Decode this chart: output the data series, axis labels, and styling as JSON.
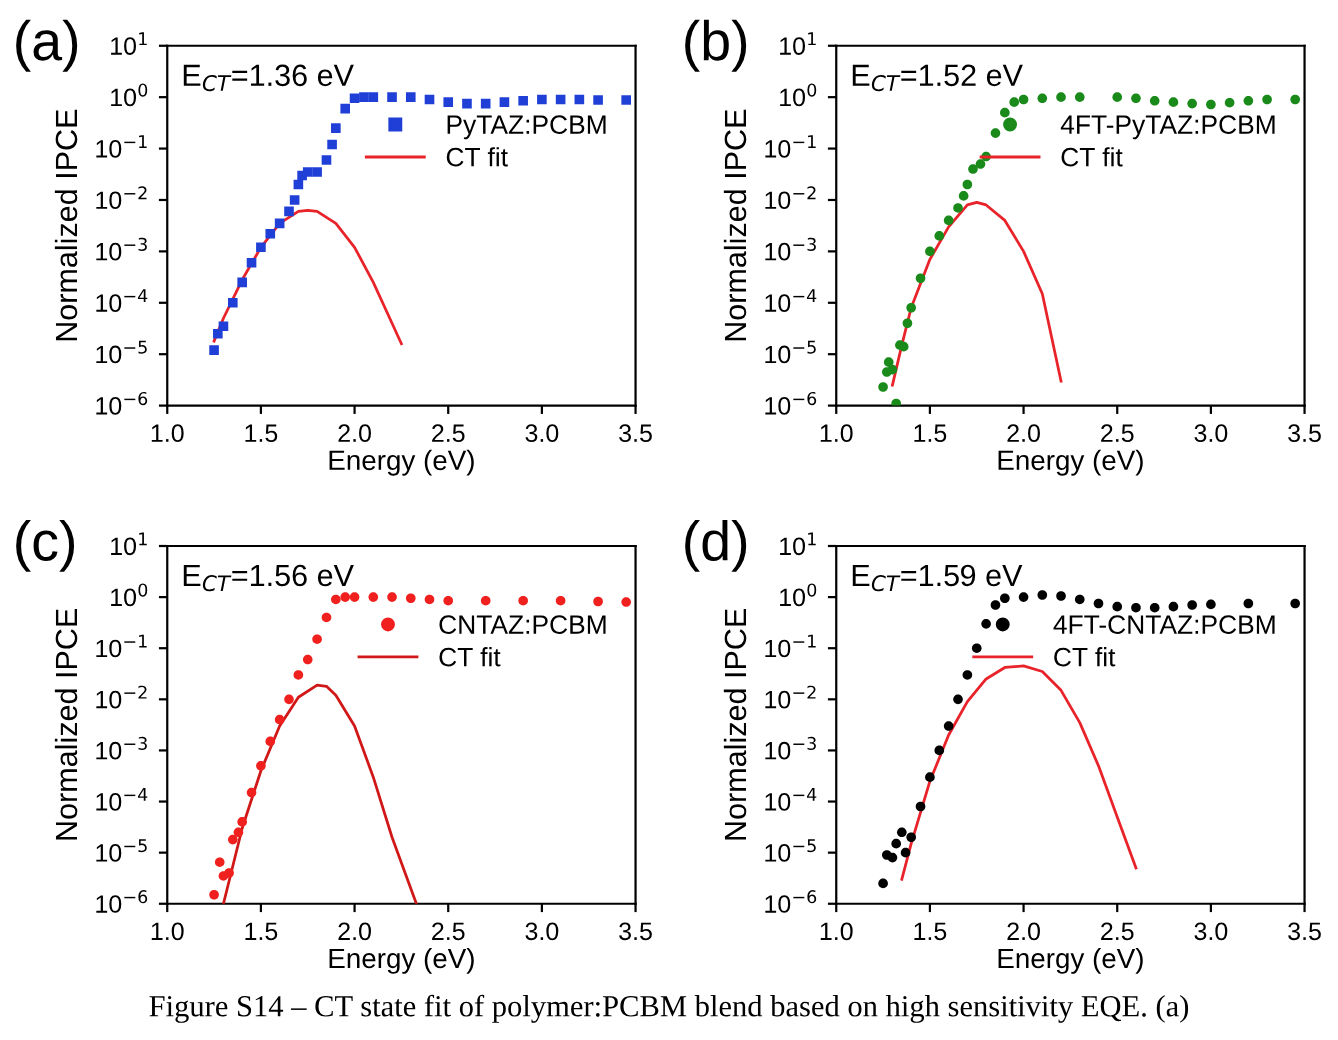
{
  "chart_data": [
    {
      "type": "scatter",
      "title": "(a)",
      "xlabel": "Energy (eV)",
      "ylabel": "Normalized IPCE",
      "log": "y",
      "xlim": [
        1.0,
        3.5
      ],
      "ylim": [
        1e-06,
        10
      ],
      "grid": false,
      "legend": "top right",
      "xticks": [
        {
          "value": 1.0,
          "label": "1.0"
        },
        {
          "value": 1.5,
          "label": "1.5"
        },
        {
          "value": 2.0,
          "label": "2.0"
        },
        {
          "value": 2.5,
          "label": "2.5"
        },
        {
          "value": 3.0,
          "label": "3.0"
        },
        {
          "value": 3.5,
          "label": "3.5"
        }
      ],
      "yticks": [
        {
          "value": 1e-06,
          "label": "10$^{−6}$"
        },
        {
          "value": 1e-05,
          "label": "10$^{−5}$"
        },
        {
          "value": 0.0001,
          "label": "10$^{−4}$"
        },
        {
          "value": 0.001,
          "label": "10$^{−3}$"
        },
        {
          "value": 0.01,
          "label": "10$^{−2}$"
        },
        {
          "value": 0.1,
          "label": "10$^{−1}$"
        },
        {
          "value": 1,
          "label": "10$^{0}$"
        },
        {
          "value": 10,
          "label": "10$^{1}$"
        }
      ],
      "annotations": [
        "E$_{CT}$=1.36 eV"
      ],
      "series": [
        {
          "name": "PyTAZ:PCBM",
          "marker": "square",
          "color": "#1f3fd6",
          "x": [
            1.25,
            1.27,
            1.3,
            1.35,
            1.4,
            1.45,
            1.5,
            1.55,
            1.6,
            1.65,
            1.68,
            1.7,
            1.72,
            1.75,
            1.8,
            1.85,
            1.88,
            1.9,
            1.95,
            2.0,
            2.05,
            2.1,
            2.2,
            2.3,
            2.4,
            2.5,
            2.6,
            2.7,
            2.8,
            2.9,
            3.0,
            3.1,
            3.2,
            3.3,
            3.45
          ],
          "values": [
            1.2e-05,
            2.5e-05,
            3.5e-05,
            0.0001,
            0.00025,
            0.0006,
            0.0012,
            0.0022,
            0.0035,
            0.006,
            0.01,
            0.02,
            0.03,
            0.035,
            0.035,
            0.06,
            0.12,
            0.25,
            0.6,
            0.95,
            1.0,
            1.0,
            1.0,
            1.0,
            0.9,
            0.8,
            0.75,
            0.75,
            0.8,
            0.85,
            0.9,
            0.9,
            0.9,
            0.88,
            0.88
          ]
        },
        {
          "name": "CT fit",
          "type": "line",
          "color": "#e8232a",
          "x": [
            1.25,
            1.3,
            1.4,
            1.5,
            1.6,
            1.7,
            1.75,
            1.8,
            1.9,
            2.0,
            2.1,
            2.2,
            2.25
          ],
          "values": [
            1.8e-05,
            5e-05,
            0.00028,
            0.0012,
            0.0035,
            0.006,
            0.0063,
            0.006,
            0.0035,
            0.0012,
            0.00025,
            4e-05,
            1.6e-05
          ]
        }
      ]
    },
    {
      "type": "scatter",
      "title": "(b)",
      "xlabel": "Energy (eV)",
      "ylabel": "Normalized IPCE",
      "log": "y",
      "xlim": [
        1.0,
        3.5
      ],
      "ylim": [
        1e-06,
        10
      ],
      "grid": false,
      "legend": "top right",
      "xticks": [
        {
          "value": 1.0,
          "label": "1.0"
        },
        {
          "value": 1.5,
          "label": "1.5"
        },
        {
          "value": 2.0,
          "label": "2.0"
        },
        {
          "value": 2.5,
          "label": "2.5"
        },
        {
          "value": 3.0,
          "label": "3.0"
        },
        {
          "value": 3.5,
          "label": "3.5"
        }
      ],
      "yticks": [
        {
          "value": 1e-06,
          "label": "10$^{−6}$"
        },
        {
          "value": 1e-05,
          "label": "10$^{−5}$"
        },
        {
          "value": 0.0001,
          "label": "10$^{−4}$"
        },
        {
          "value": 0.001,
          "label": "10$^{−3}$"
        },
        {
          "value": 0.01,
          "label": "10$^{−2}$"
        },
        {
          "value": 0.1,
          "label": "10$^{−1}$"
        },
        {
          "value": 1,
          "label": "10$^{0}$"
        },
        {
          "value": 10,
          "label": "10$^{1}$"
        }
      ],
      "annotations": [
        "E$_{CT}$=1.52 eV"
      ],
      "series": [
        {
          "name": "4FT-PyTAZ:PCBM",
          "marker": "circle",
          "color": "#1a8a1a",
          "x": [
            1.25,
            1.27,
            1.28,
            1.3,
            1.32,
            1.34,
            1.36,
            1.38,
            1.4,
            1.45,
            1.5,
            1.55,
            1.6,
            1.65,
            1.68,
            1.7,
            1.73,
            1.77,
            1.8,
            1.85,
            1.9,
            1.95,
            2.0,
            2.1,
            2.2,
            2.3,
            2.5,
            2.6,
            2.7,
            2.8,
            2.9,
            3.0,
            3.1,
            3.2,
            3.3,
            3.45
          ],
          "values": [
            2.3e-06,
            4.5e-06,
            7e-06,
            5e-06,
            1.1e-06,
            1.5e-05,
            1.4e-05,
            4e-05,
            8e-05,
            0.0003,
            0.001,
            0.002,
            0.004,
            0.007,
            0.012,
            0.02,
            0.04,
            0.05,
            0.07,
            0.2,
            0.5,
            0.8,
            0.9,
            0.95,
            1.0,
            1.0,
            1.0,
            0.95,
            0.85,
            0.8,
            0.75,
            0.72,
            0.78,
            0.85,
            0.9,
            0.9
          ]
        },
        {
          "name": "CT fit",
          "type": "line",
          "color": "#e8232a",
          "x": [
            1.3,
            1.35,
            1.4,
            1.5,
            1.6,
            1.7,
            1.75,
            1.8,
            1.9,
            2.0,
            2.1,
            2.2
          ],
          "values": [
            2.5e-06,
            1.5e-05,
            8e-05,
            0.0007,
            0.003,
            0.008,
            0.009,
            0.008,
            0.004,
            0.001,
            0.00015,
            3e-06
          ]
        }
      ]
    },
    {
      "type": "scatter",
      "title": "(c)",
      "xlabel": "Energy (eV)",
      "ylabel": "Normalized IPCE",
      "log": "y",
      "xlim": [
        1.0,
        3.5
      ],
      "ylim": [
        1e-06,
        10
      ],
      "grid": false,
      "legend": "top right",
      "xticks": [
        {
          "value": 1.0,
          "label": "1.0"
        },
        {
          "value": 1.5,
          "label": "1.5"
        },
        {
          "value": 2.0,
          "label": "2.0"
        },
        {
          "value": 2.5,
          "label": "2.5"
        },
        {
          "value": 3.0,
          "label": "3.0"
        },
        {
          "value": 3.5,
          "label": "3.5"
        }
      ],
      "yticks": [
        {
          "value": 1e-06,
          "label": "10$^{−6}$"
        },
        {
          "value": 1e-05,
          "label": "10$^{−5}$"
        },
        {
          "value": 0.0001,
          "label": "10$^{−4}$"
        },
        {
          "value": 0.001,
          "label": "10$^{−3}$"
        },
        {
          "value": 0.01,
          "label": "10$^{−2}$"
        },
        {
          "value": 0.1,
          "label": "10$^{−1}$"
        },
        {
          "value": 1,
          "label": "10$^{0}$"
        },
        {
          "value": 10,
          "label": "10$^{1}$"
        }
      ],
      "annotations": [
        "E$_{CT}$=1.56 eV"
      ],
      "series": [
        {
          "name": "CNTAZ:PCBM",
          "marker": "circle",
          "color": "#f0201e",
          "x": [
            1.25,
            1.28,
            1.3,
            1.33,
            1.35,
            1.38,
            1.4,
            1.45,
            1.5,
            1.55,
            1.6,
            1.65,
            1.7,
            1.75,
            1.8,
            1.85,
            1.9,
            1.95,
            2.0,
            2.1,
            2.2,
            2.3,
            2.4,
            2.5,
            2.7,
            2.9,
            3.1,
            3.3,
            3.45
          ],
          "values": [
            1.5e-06,
            6.5e-06,
            3.5e-06,
            4e-06,
            1.8e-05,
            2.5e-05,
            4e-05,
            0.00015,
            0.0005,
            0.0015,
            0.004,
            0.01,
            0.03,
            0.06,
            0.15,
            0.4,
            0.9,
            1.0,
            1.0,
            1.0,
            1.0,
            0.95,
            0.9,
            0.85,
            0.85,
            0.85,
            0.85,
            0.82,
            0.8
          ]
        },
        {
          "name": "CT fit",
          "type": "line",
          "color": "#d01818",
          "x": [
            1.3,
            1.4,
            1.5,
            1.6,
            1.7,
            1.8,
            1.85,
            1.9,
            2.0,
            2.1,
            2.2,
            2.33
          ],
          "values": [
            1e-06,
            3e-05,
            0.0004,
            0.003,
            0.011,
            0.019,
            0.018,
            0.012,
            0.003,
            0.0003,
            2e-05,
            1e-06
          ]
        }
      ]
    },
    {
      "type": "scatter",
      "title": "(d)",
      "xlabel": "Energy (eV)",
      "ylabel": "Normalized IPCE",
      "log": "y",
      "xlim": [
        1.0,
        3.5
      ],
      "ylim": [
        1e-06,
        10
      ],
      "grid": false,
      "legend": "top right",
      "xticks": [
        {
          "value": 1.0,
          "label": "1.0"
        },
        {
          "value": 1.5,
          "label": "1.5"
        },
        {
          "value": 2.0,
          "label": "2.0"
        },
        {
          "value": 2.5,
          "label": "2.5"
        },
        {
          "value": 3.0,
          "label": "3.0"
        },
        {
          "value": 3.5,
          "label": "3.5"
        }
      ],
      "yticks": [
        {
          "value": 1e-06,
          "label": "10$^{−6}$"
        },
        {
          "value": 1e-05,
          "label": "10$^{−5}$"
        },
        {
          "value": 0.0001,
          "label": "10$^{−4}$"
        },
        {
          "value": 0.001,
          "label": "10$^{−3}$"
        },
        {
          "value": 0.01,
          "label": "10$^{−2}$"
        },
        {
          "value": 0.1,
          "label": "10$^{−1}$"
        },
        {
          "value": 1,
          "label": "10$^{0}$"
        },
        {
          "value": 10,
          "label": "10$^{1}$"
        }
      ],
      "annotations": [
        "E$_{CT}$=1.59 eV",
        "Figure S14 – CT state fit of polymer:PCBM blend based on high sensitivity EQE. (a)"
      ],
      "series": [
        {
          "name": "4FT-CNTAZ:PCBM",
          "marker": "circle",
          "color": "#000000",
          "x": [
            1.25,
            1.27,
            1.3,
            1.32,
            1.35,
            1.37,
            1.4,
            1.45,
            1.5,
            1.55,
            1.6,
            1.65,
            1.7,
            1.75,
            1.8,
            1.85,
            1.9,
            2.0,
            2.1,
            2.2,
            2.3,
            2.4,
            2.5,
            2.6,
            2.7,
            2.8,
            2.9,
            3.0,
            3.2,
            3.45
          ],
          "values": [
            2.5e-06,
            9e-06,
            8e-06,
            1.5e-05,
            2.5e-05,
            1e-05,
            2e-05,
            8e-05,
            0.0003,
            0.001,
            0.003,
            0.01,
            0.03,
            0.1,
            0.3,
            0.7,
            0.95,
            1.0,
            1.1,
            1.05,
            0.9,
            0.75,
            0.65,
            0.62,
            0.62,
            0.65,
            0.7,
            0.72,
            0.75,
            0.75
          ]
        },
        {
          "name": "CT fit",
          "type": "line",
          "color": "#e8232a",
          "x": [
            1.35,
            1.4,
            1.5,
            1.6,
            1.7,
            1.8,
            1.9,
            2.0,
            2.1,
            2.2,
            2.3,
            2.4,
            2.5,
            2.6
          ],
          "values": [
            3e-06,
            1.5e-05,
            0.00025,
            0.002,
            0.009,
            0.025,
            0.042,
            0.045,
            0.035,
            0.015,
            0.0035,
            0.0005,
            5e-05,
            5e-06
          ]
        }
      ]
    }
  ]
}
